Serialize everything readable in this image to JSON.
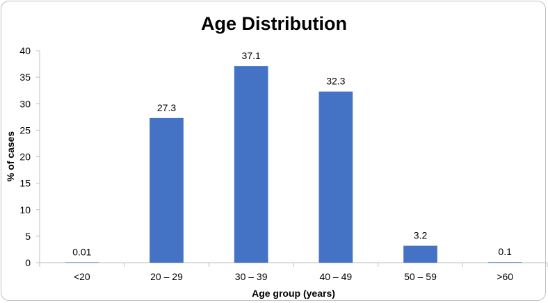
{
  "chart_data": {
    "type": "bar",
    "title": "Age Distribution",
    "xlabel": "Age group (years)",
    "ylabel": "% of cases",
    "categories": [
      "<20",
      "20 – 29",
      "30 – 39",
      "40 – 49",
      "50 – 59",
      ">60"
    ],
    "values": [
      0.01,
      27.3,
      37.1,
      32.3,
      3.2,
      0.1
    ],
    "data_labels": [
      "0.01",
      "27.3",
      "37.1",
      "32.3",
      "3.2",
      "0.1"
    ],
    "ylim": [
      0,
      40
    ],
    "yticks": [
      0,
      5,
      10,
      15,
      20,
      25,
      30,
      35,
      40
    ],
    "grid": false,
    "legend": "none",
    "bar_color": "#4472C4"
  }
}
